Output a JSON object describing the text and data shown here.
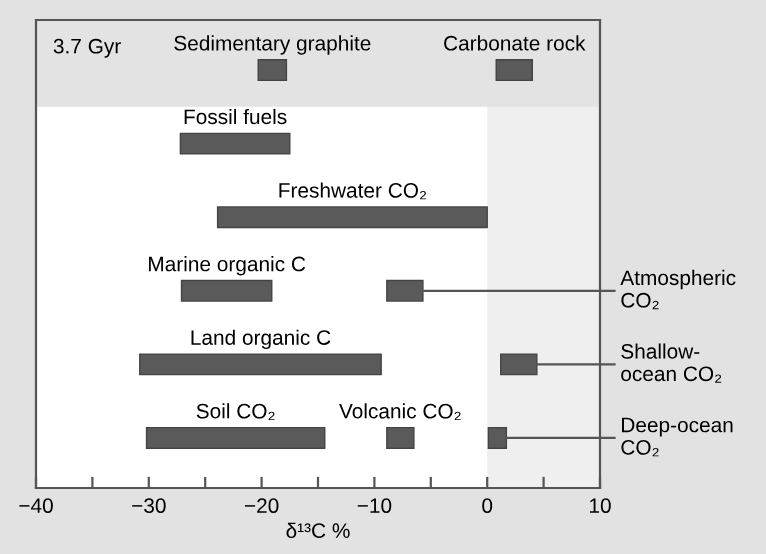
{
  "chart_data": {
    "type": "bar",
    "orientation": "horizontal",
    "xlabel": "δ¹³C %",
    "categories": [
      "3.7 Gyr",
      null,
      null,
      null,
      null,
      null
    ],
    "series": [
      {
        "name": "Sedimentary graphite",
        "color": "#5a5a5a",
        "values": [
          2.5,
          null,
          null,
          null,
          null,
          null
        ],
        "base": [
          -20.3,
          null,
          null,
          null,
          null,
          null
        ]
      },
      {
        "name": "Carbonate rock",
        "color": "#5a5a5a",
        "values": [
          3.2,
          null,
          null,
          null,
          null,
          null
        ],
        "base": [
          0.8,
          null,
          null,
          null,
          null,
          null
        ]
      },
      {
        "name": "Fossil fuels",
        "color": "#5a5a5a",
        "values": [
          null,
          9.7,
          null,
          null,
          null,
          null
        ],
        "base": [
          null,
          -27.2,
          null,
          null,
          null,
          null
        ]
      },
      {
        "name": "Freshwater CO₂",
        "color": "#5a5a5a",
        "values": [
          null,
          null,
          23.9,
          null,
          null,
          null
        ],
        "base": [
          null,
          null,
          -23.9,
          null,
          null,
          null
        ]
      },
      {
        "name": "Marine organic C",
        "color": "#5a5a5a",
        "values": [
          null,
          null,
          null,
          8.0,
          null,
          null
        ],
        "base": [
          null,
          null,
          null,
          -27.1,
          null,
          null
        ]
      },
      {
        "name": "Atmospheric\nCO₂",
        "color": "#5a5a5a",
        "values": [
          null,
          null,
          null,
          3.2,
          null,
          null
        ],
        "base": [
          null,
          null,
          null,
          -8.9,
          null,
          null
        ]
      },
      {
        "name": "Land organic C",
        "color": "#5a5a5a",
        "values": [
          null,
          null,
          null,
          null,
          21.4,
          null
        ],
        "base": [
          null,
          null,
          null,
          null,
          -30.8,
          null
        ]
      },
      {
        "name": "Shallow-\nocean CO₂",
        "color": "#5a5a5a",
        "values": [
          null,
          null,
          null,
          null,
          3.2,
          null
        ],
        "base": [
          null,
          null,
          null,
          null,
          1.2,
          null
        ]
      },
      {
        "name": "Soil CO₂",
        "color": "#5a5a5a",
        "values": [
          null,
          null,
          null,
          null,
          null,
          15.8
        ],
        "base": [
          null,
          null,
          null,
          null,
          null,
          -30.2
        ]
      },
      {
        "name": "Volcanic CO₂",
        "color": "#5a5a5a",
        "values": [
          null,
          null,
          null,
          null,
          null,
          2.4
        ],
        "base": [
          null,
          null,
          null,
          null,
          null,
          -8.9
        ]
      },
      {
        "name": "Deep-ocean\nCO₂",
        "color": "#5a5a5a",
        "values": [
          null,
          null,
          null,
          null,
          null,
          1.6
        ],
        "base": [
          null,
          null,
          null,
          null,
          null,
          0.1
        ]
      }
    ],
    "xlim": [
      -40,
      10
    ],
    "xticks": [
      -40,
      {
        "value": -35,
        "label": null
      },
      -30,
      {
        "value": -25,
        "label": null
      },
      -20,
      {
        "value": -15,
        "label": null
      },
      -10,
      {
        "value": -5,
        "label": null
      },
      0,
      {
        "value": 5,
        "label": null
      },
      10
    ],
    "bands": [
      {
        "axis": "x",
        "from": 0,
        "to": 10,
        "color": "#efefef"
      }
    ],
    "grid": false
  }
}
